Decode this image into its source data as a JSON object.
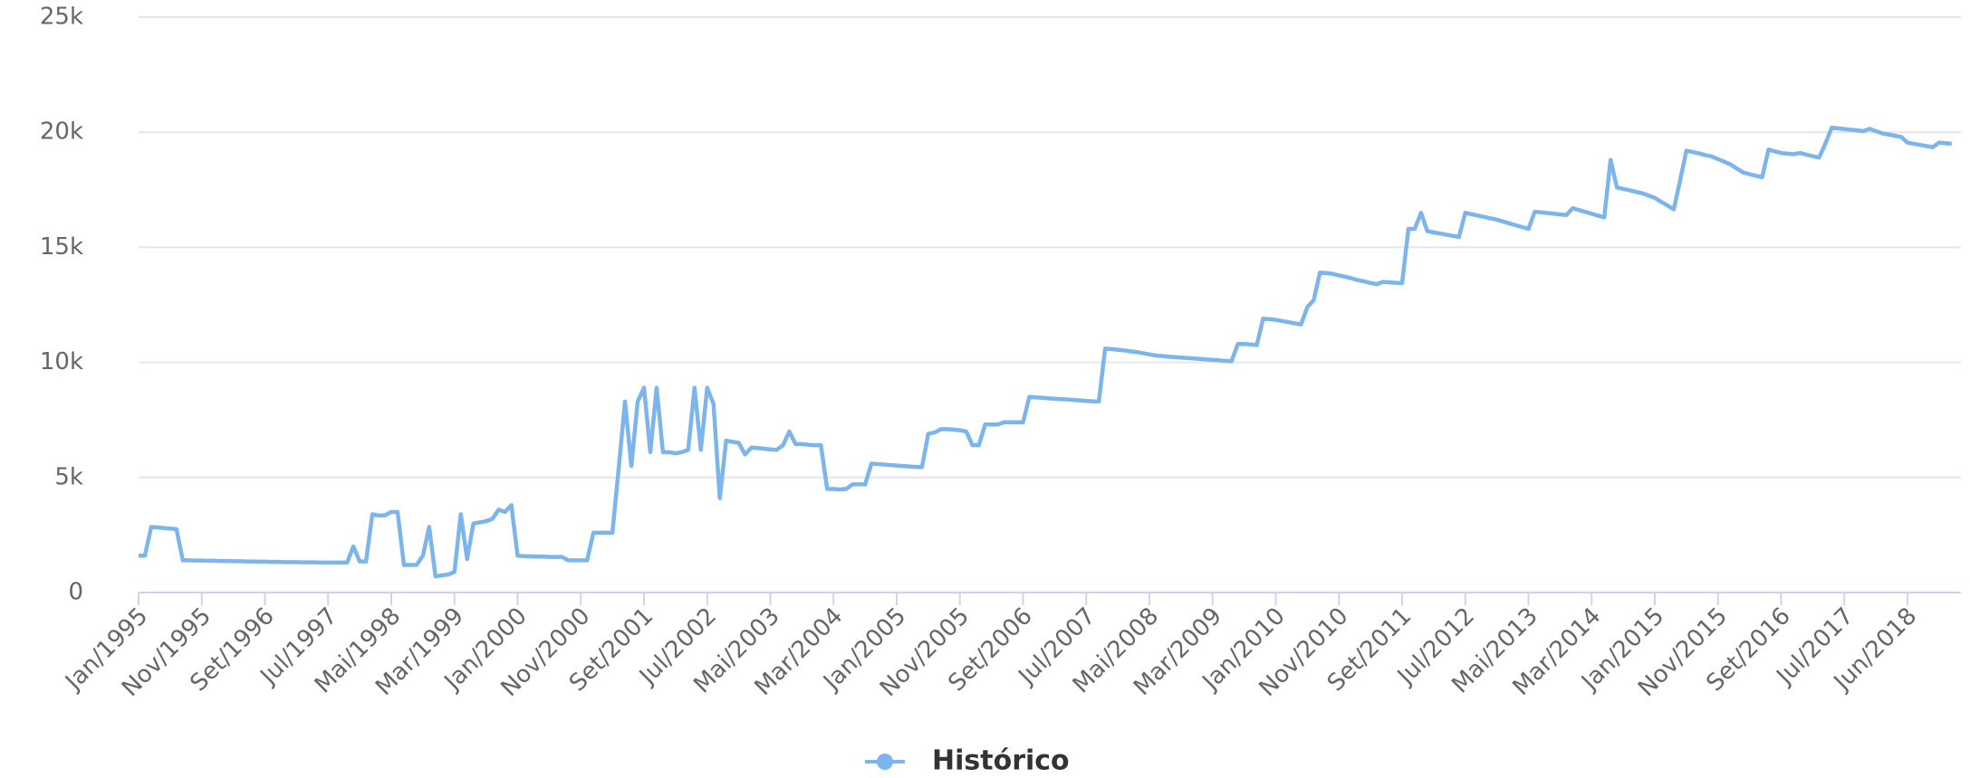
{
  "chart_data": {
    "type": "line",
    "categories": [
      "Jan/1995",
      null,
      null,
      null,
      null,
      null,
      null,
      null,
      null,
      null,
      "Nov/1995",
      null,
      null,
      null,
      null,
      null,
      null,
      null,
      null,
      null,
      "Set/1996",
      null,
      null,
      null,
      null,
      null,
      null,
      null,
      null,
      null,
      "Jul/1997",
      null,
      null,
      null,
      null,
      null,
      null,
      null,
      null,
      null,
      "Mai/1998",
      null,
      null,
      null,
      null,
      null,
      null,
      null,
      null,
      null,
      "Mar/1999",
      null,
      null,
      null,
      null,
      null,
      null,
      null,
      null,
      null,
      "Jan/2000",
      null,
      null,
      null,
      null,
      null,
      null,
      null,
      null,
      null,
      "Nov/2000",
      null,
      null,
      null,
      null,
      null,
      null,
      null,
      null,
      null,
      "Set/2001",
      null,
      null,
      null,
      null,
      null,
      null,
      null,
      null,
      null,
      "Jul/2002",
      null,
      null,
      null,
      null,
      null,
      null,
      null,
      null,
      null,
      "Mai/2003",
      null,
      null,
      null,
      null,
      null,
      null,
      null,
      null,
      null,
      "Mar/2004",
      null,
      null,
      null,
      null,
      null,
      null,
      null,
      null,
      null,
      "Jan/2005",
      null,
      null,
      null,
      null,
      null,
      null,
      null,
      null,
      null,
      "Nov/2005",
      null,
      null,
      null,
      null,
      null,
      null,
      null,
      null,
      null,
      "Set/2006",
      null,
      null,
      null,
      null,
      null,
      null,
      null,
      null,
      null,
      "Jul/2007",
      null,
      null,
      null,
      null,
      null,
      null,
      null,
      null,
      null,
      "Mai/2008",
      null,
      null,
      null,
      null,
      null,
      null,
      null,
      null,
      null,
      "Mar/2009",
      null,
      null,
      null,
      null,
      null,
      null,
      null,
      null,
      null,
      "Jan/2010",
      null,
      null,
      null,
      null,
      null,
      null,
      null,
      null,
      null,
      "Nov/2010",
      null,
      null,
      null,
      null,
      null,
      null,
      null,
      null,
      null,
      "Set/2011",
      null,
      null,
      null,
      null,
      null,
      null,
      null,
      null,
      null,
      "Jul/2012",
      null,
      null,
      null,
      null,
      null,
      null,
      null,
      null,
      null,
      "Mai/2013",
      null,
      null,
      null,
      null,
      null,
      null,
      null,
      null,
      null,
      "Mar/2014",
      null,
      null,
      null,
      null,
      null,
      null,
      null,
      null,
      null,
      "Jan/2015",
      null,
      null,
      null,
      null,
      null,
      null,
      null,
      null,
      null,
      "Nov/2015",
      null,
      null,
      null,
      null,
      null,
      null,
      null,
      null,
      null,
      "Set/2016",
      null,
      null,
      null,
      null,
      null,
      null,
      null,
      null,
      null,
      "Jul/2017",
      null,
      null,
      null,
      null,
      null,
      null,
      null,
      null,
      null,
      "Jun/2018",
      null,
      null,
      null,
      null,
      null,
      null,
      null
    ],
    "series": [
      {
        "name": "Histórico",
        "color": "#7cb5ec",
        "values": [
          1600,
          1600,
          2850,
          2830,
          2800,
          2780,
          2750,
          1400,
          1400,
          1390,
          1390,
          1380,
          1380,
          1370,
          1370,
          1360,
          1360,
          1350,
          1350,
          1340,
          1340,
          1330,
          1330,
          1320,
          1320,
          1320,
          1310,
          1310,
          1310,
          1300,
          1300,
          1300,
          1300,
          1300,
          2000,
          1350,
          1350,
          3400,
          3350,
          3350,
          3500,
          3500,
          1200,
          1200,
          1200,
          1600,
          2850,
          700,
          750,
          780,
          900,
          3400,
          1450,
          3000,
          3050,
          3100,
          3200,
          3600,
          3500,
          3800,
          1600,
          1580,
          1570,
          1560,
          1560,
          1550,
          1550,
          1550,
          1400,
          1400,
          1400,
          1400,
          2600,
          2600,
          2600,
          2600,
          5400,
          8300,
          5500,
          8300,
          8900,
          6100,
          8900,
          6100,
          6100,
          6050,
          6100,
          6200,
          8900,
          6200,
          8900,
          8200,
          4100,
          6600,
          6550,
          6500,
          6000,
          6300,
          6280,
          6250,
          6220,
          6200,
          6400,
          7000,
          6450,
          6450,
          6420,
          6400,
          6400,
          4500,
          4500,
          4480,
          4500,
          4700,
          4700,
          4700,
          5600,
          5580,
          5560,
          5540,
          5520,
          5500,
          5480,
          5460,
          5450,
          6900,
          6950,
          7100,
          7100,
          7080,
          7050,
          7000,
          6400,
          6400,
          7300,
          7300,
          7300,
          7400,
          7400,
          7400,
          7400,
          8500,
          8480,
          8460,
          8440,
          8420,
          8400,
          8390,
          8370,
          8350,
          8330,
          8310,
          8300,
          10600,
          10580,
          10550,
          10520,
          10480,
          10450,
          10400,
          10350,
          10300,
          10280,
          10250,
          10230,
          10210,
          10190,
          10170,
          10150,
          10130,
          10110,
          10090,
          10070,
          10050,
          10800,
          10800,
          10780,
          10750,
          11900,
          11880,
          11850,
          11800,
          11750,
          11700,
          11650,
          12400,
          12700,
          13900,
          13880,
          13850,
          13780,
          13720,
          13650,
          13580,
          13520,
          13450,
          13400,
          13500,
          13480,
          13460,
          13450,
          15800,
          15800,
          16500,
          15700,
          15650,
          15600,
          15550,
          15500,
          15450,
          16500,
          16440,
          16380,
          16320,
          16260,
          16200,
          16120,
          16040,
          15960,
          15880,
          15800,
          16550,
          16520,
          16490,
          16460,
          16430,
          16400,
          16700,
          16620,
          16540,
          16460,
          16380,
          16300,
          18800,
          17600,
          17540,
          17480,
          17410,
          17350,
          17250,
          17150,
          16980,
          16820,
          16650,
          17900,
          19200,
          19140,
          19080,
          19010,
          18950,
          18830,
          18720,
          18600,
          18420,
          18250,
          18180,
          18110,
          18050,
          19250,
          19170,
          19100,
          19070,
          19050,
          19100,
          19030,
          18960,
          18900,
          19500,
          20200,
          20170,
          20140,
          20110,
          20080,
          20050,
          20150,
          20050,
          19950,
          19900,
          19850,
          19800,
          19550,
          19500,
          19450,
          19400,
          19350,
          19550,
          19520,
          19500
        ]
      }
    ],
    "ylim": [
      0,
      25000
    ],
    "yticks": [
      0,
      {
        "value": 5000,
        "label": "5k"
      },
      {
        "value": 10000,
        "label": "10k"
      },
      {
        "value": 15000,
        "label": "15k"
      },
      {
        "value": 20000,
        "label": "20k"
      },
      {
        "value": 25000,
        "label": "25k"
      }
    ],
    "grid": true
  }
}
